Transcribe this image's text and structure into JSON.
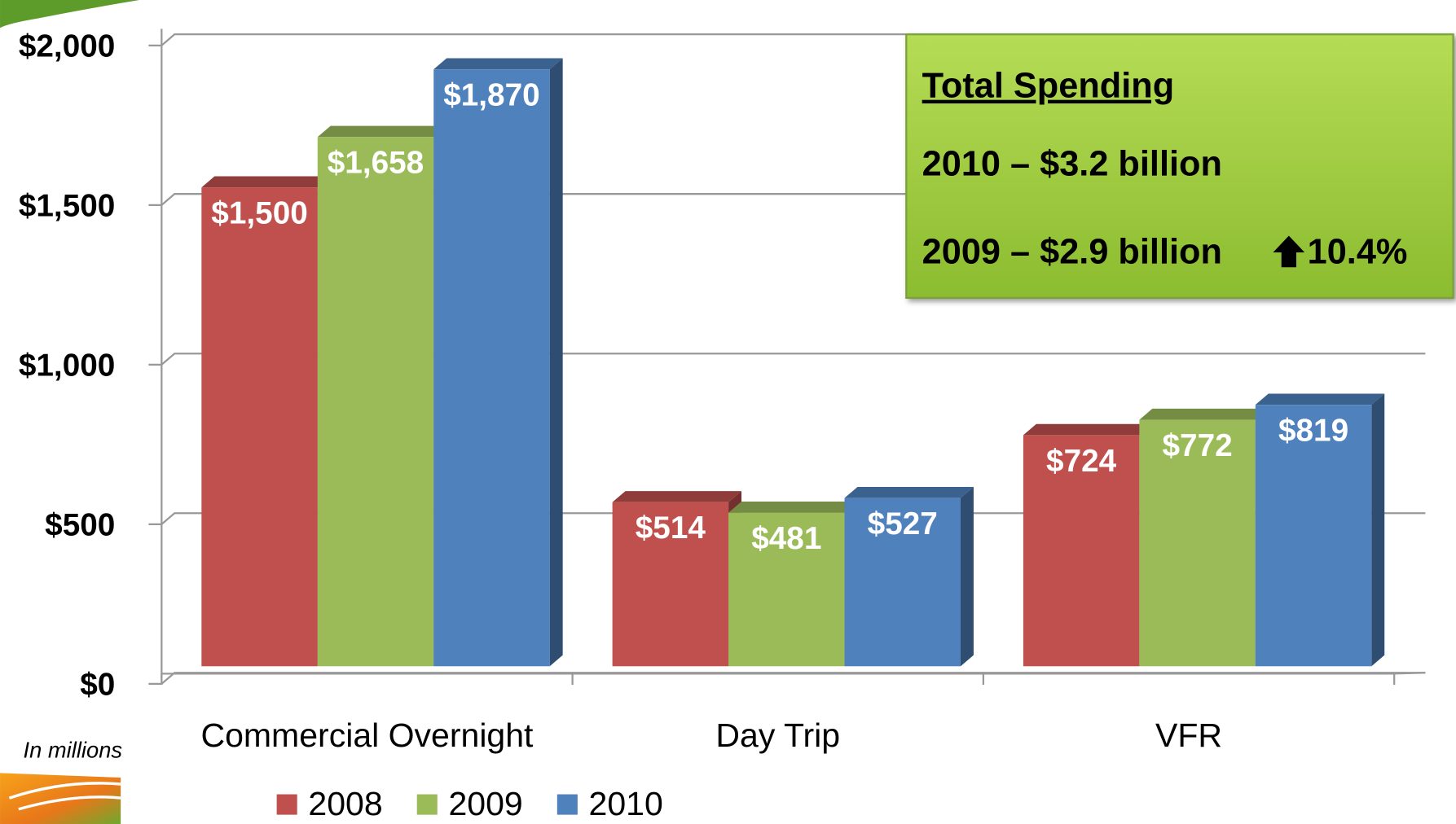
{
  "chart_data": {
    "type": "bar",
    "categories": [
      "Commercial Overnight",
      "Day Trip",
      "VFR"
    ],
    "series": [
      {
        "name": "2008",
        "color": "#c0504d",
        "values": [
          1500,
          514,
          724
        ],
        "value_labels": [
          "$1,500",
          "$514",
          "$724"
        ]
      },
      {
        "name": "2009",
        "color": "#9bbb59",
        "values": [
          1658,
          481,
          772
        ],
        "value_labels": [
          "$1,658",
          "$481",
          "$772"
        ]
      },
      {
        "name": "2010",
        "color": "#4f81bd",
        "values": [
          1870,
          527,
          819
        ],
        "value_labels": [
          "$1,870",
          "$527",
          "$819"
        ]
      }
    ],
    "ylim": [
      0,
      2000
    ],
    "yticks": [
      {
        "value": 0,
        "label": "$0"
      },
      {
        "value": 500,
        "label": "$500"
      },
      {
        "value": 1000,
        "label": "$1,000"
      },
      {
        "value": 1500,
        "label": "$1,500"
      },
      {
        "value": 2000,
        "label": "$2,000"
      }
    ],
    "grid": true,
    "note": "In millions",
    "annotation": {
      "title": "Total Spending",
      "lines": [
        "2010 – $3.2 billion",
        "2009 – $2.9 billion"
      ],
      "change": "10.4%"
    }
  }
}
